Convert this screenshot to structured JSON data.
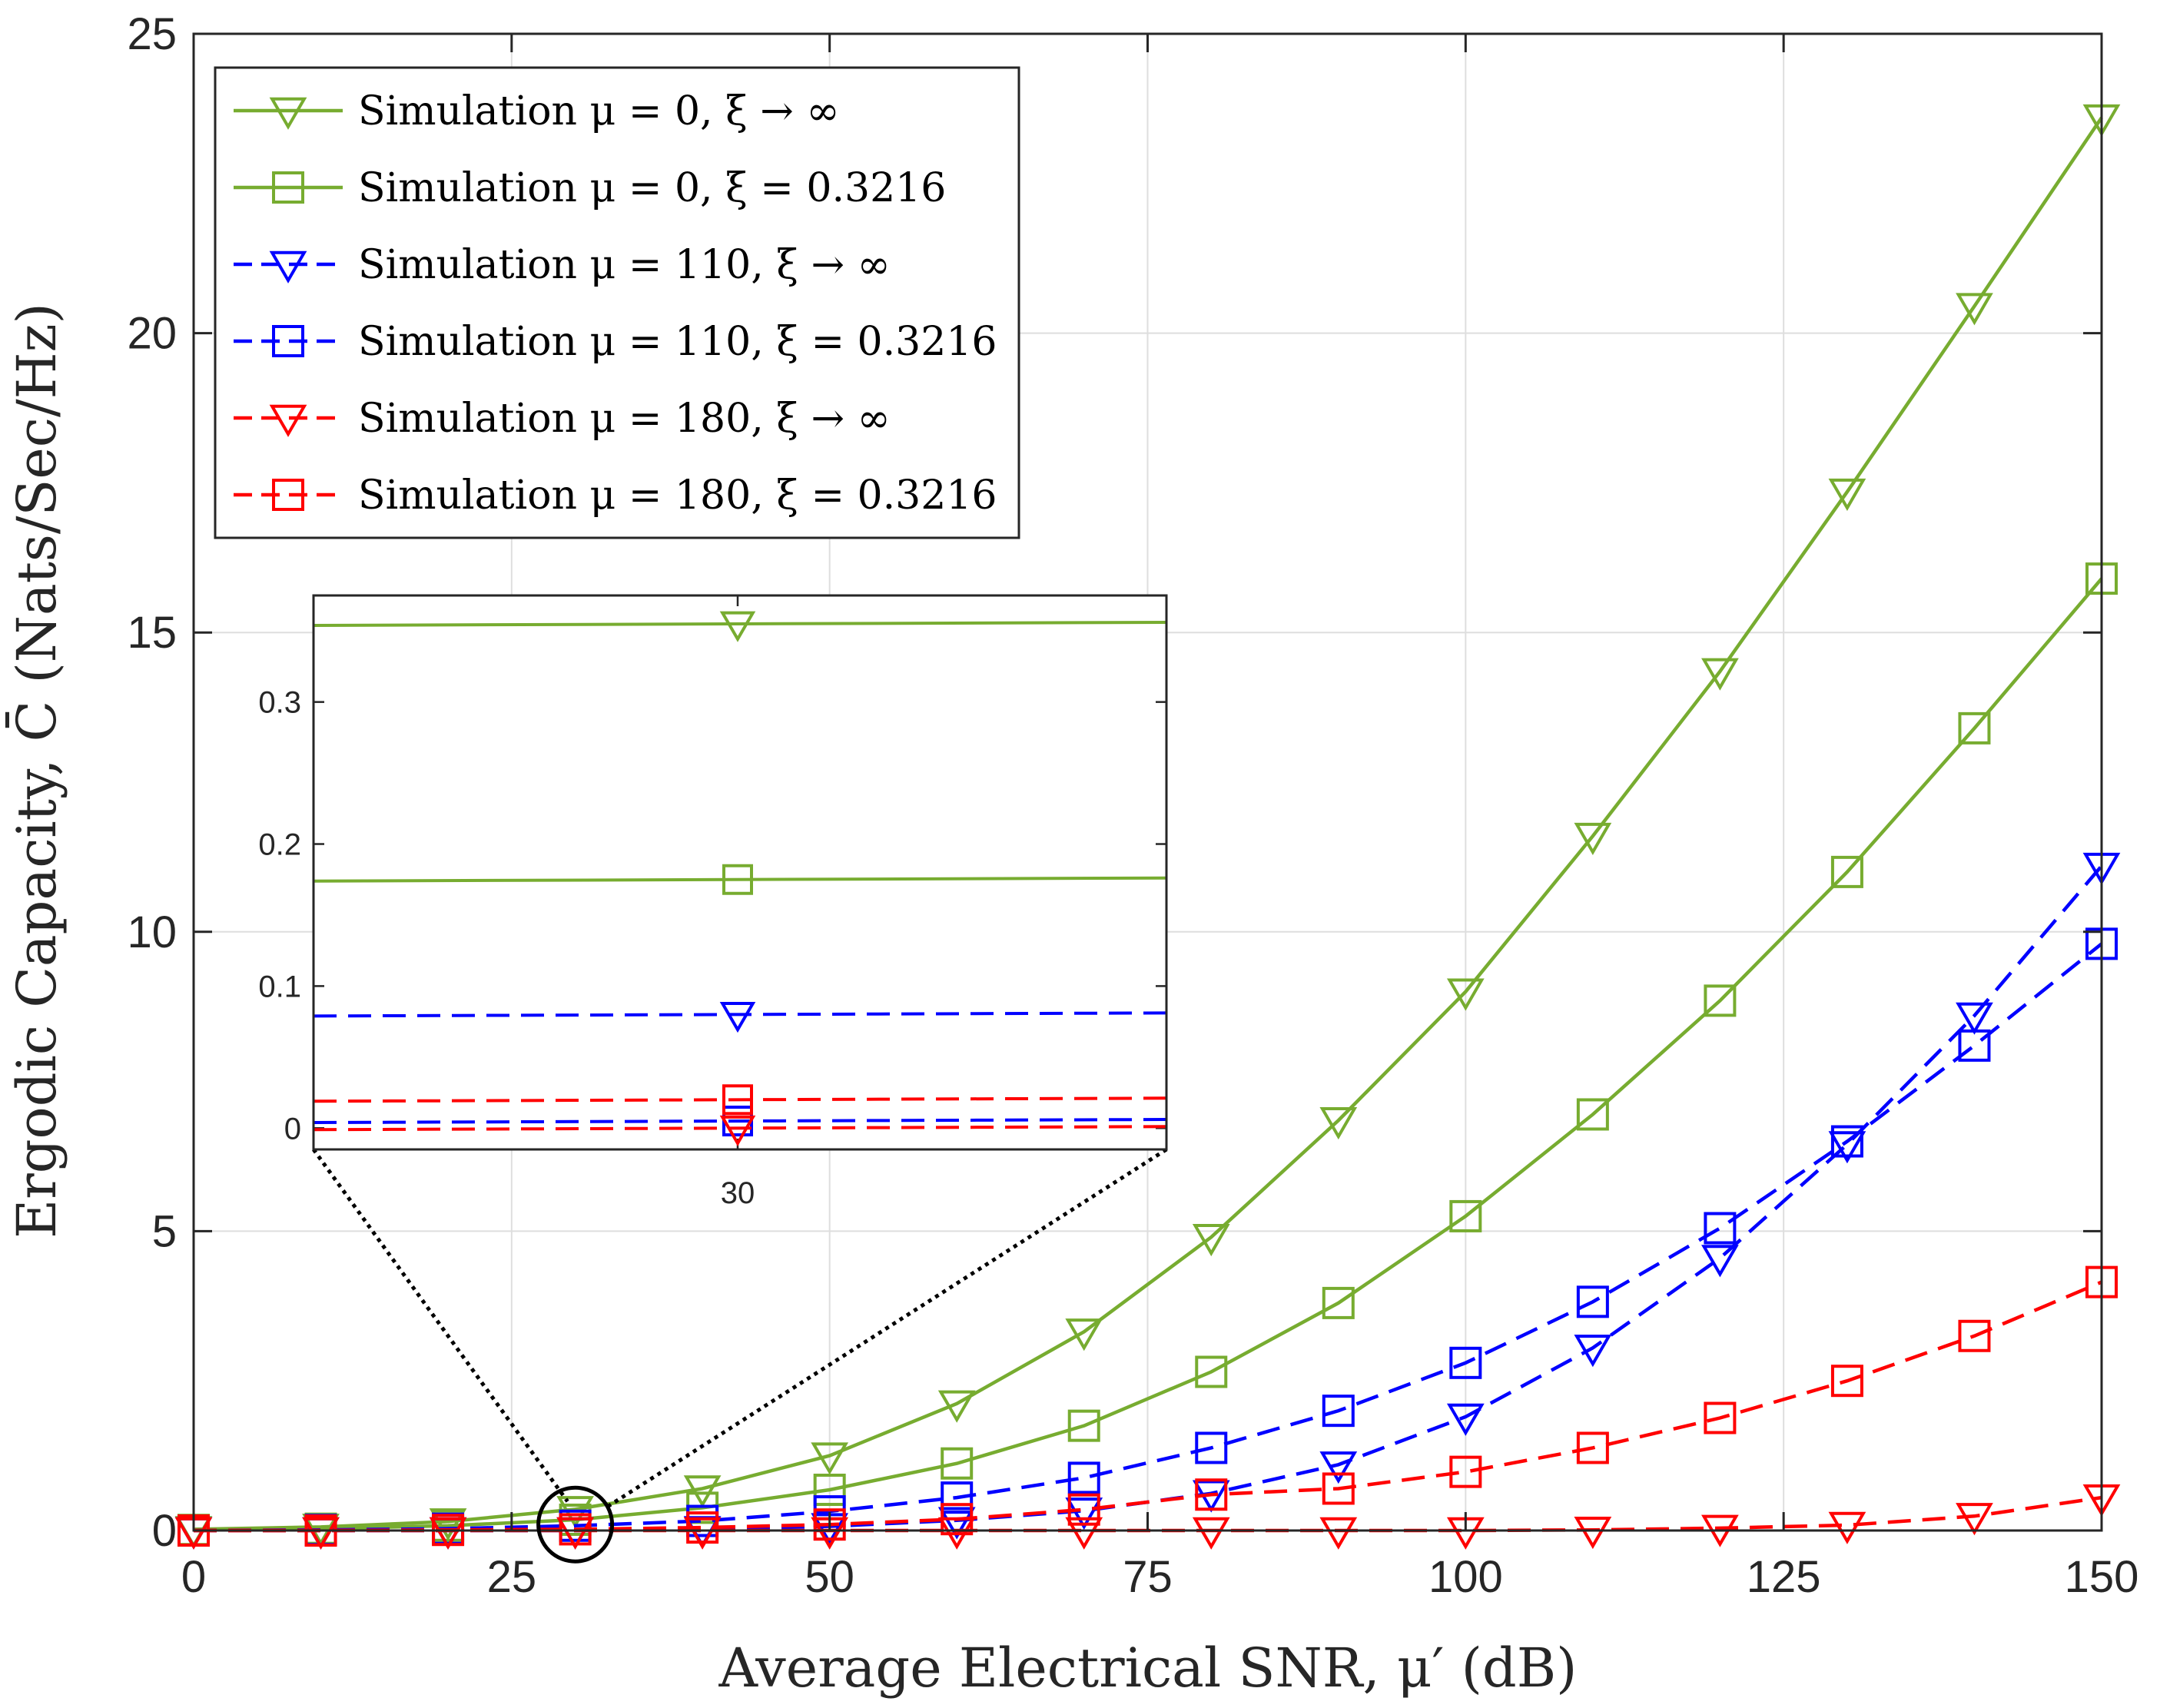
{
  "chart_data": {
    "type": "line",
    "title": "",
    "xlabel": "Average Electrical SNR, μ′ (dB)",
    "ylabel": "Ergodic Capacity, C̄ (Nats/Sec/Hz)",
    "xlim": [
      0,
      150
    ],
    "ylim": [
      0,
      25
    ],
    "xticks": [
      0,
      25,
      50,
      75,
      100,
      125,
      150
    ],
    "yticks": [
      0,
      5,
      10,
      15,
      20,
      25
    ],
    "x": [
      0,
      10,
      20,
      30,
      40,
      50,
      60,
      70,
      80,
      90,
      100,
      110,
      120,
      130,
      140,
      150
    ],
    "grid": true,
    "legend_position": "top-left",
    "series": [
      {
        "name": "Simulation μ = 0, ξ → ∞",
        "color": "#77AC30",
        "dash": "solid",
        "marker": "triangle-down",
        "values": [
          0.02,
          0.06,
          0.15,
          0.355,
          0.7,
          1.25,
          2.12,
          3.32,
          4.9,
          6.85,
          9.0,
          11.6,
          14.35,
          17.35,
          20.45,
          23.6
        ]
      },
      {
        "name": "Simulation μ = 0, ξ = 0.3216",
        "color": "#77AC30",
        "dash": "solid",
        "marker": "square",
        "values": [
          0.01,
          0.03,
          0.08,
          0.18,
          0.38,
          0.68,
          1.12,
          1.75,
          2.65,
          3.8,
          5.25,
          6.95,
          8.85,
          11.0,
          13.4,
          15.9
        ]
      },
      {
        "name": "Simulation μ = 110, ξ → ∞",
        "color": "#0000FF",
        "dash": "dashed",
        "marker": "triangle-down",
        "values": [
          0.0,
          0.0,
          0.0,
          0.0,
          0.02,
          0.07,
          0.17,
          0.33,
          0.62,
          1.1,
          1.9,
          3.05,
          4.55,
          6.45,
          8.6,
          11.1
        ]
      },
      {
        "name": "Simulation μ = 110, ξ = 0.3216",
        "color": "#0000FF",
        "dash": "dashed",
        "marker": "square",
        "values": [
          0.0,
          0.01,
          0.03,
          0.08,
          0.16,
          0.32,
          0.55,
          0.88,
          1.38,
          2.0,
          2.8,
          3.82,
          5.05,
          6.5,
          8.1,
          9.8
        ]
      },
      {
        "name": "Simulation μ = 180, ξ → ∞",
        "color": "#FF0000",
        "dash": "dashed",
        "marker": "triangle-down",
        "values": [
          0.0,
          0.0,
          0.0,
          0.0,
          0.0,
          0.0,
          0.0,
          0.0,
          0.0,
          0.0,
          0.0,
          0.01,
          0.04,
          0.09,
          0.24,
          0.55
        ]
      },
      {
        "name": "Simulation μ = 180, ξ = 0.3216",
        "color": "#FF0000",
        "dash": "dashed",
        "marker": "square",
        "values": [
          0.0,
          0.0,
          0.01,
          0.02,
          0.05,
          0.1,
          0.19,
          0.35,
          0.6,
          0.7,
          0.98,
          1.38,
          1.88,
          2.5,
          3.25,
          4.15
        ]
      }
    ],
    "inset": {
      "x_center": 30,
      "xticks": [
        30
      ],
      "ylim": [
        -0.015,
        0.375
      ],
      "yticks": [
        0,
        0.1,
        0.2,
        0.3
      ],
      "ytick_labels": [
        "0",
        "0.1",
        "0.2",
        "0.3"
      ],
      "values": [
        0.355,
        0.175,
        0.08,
        0.005,
        0.0,
        0.02
      ]
    }
  }
}
